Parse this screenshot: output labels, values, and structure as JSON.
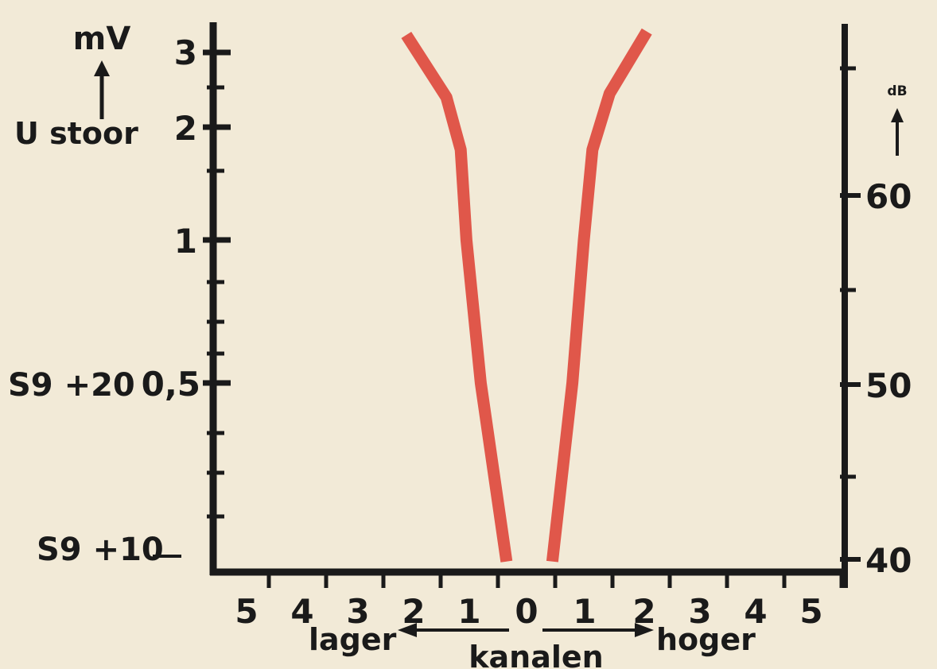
{
  "chart_data": {
    "type": "line",
    "title": "",
    "xlabel": "kanalen",
    "x_direction_labels": {
      "left": "lager",
      "right": "hoger"
    },
    "x_tick_labels": [
      "5",
      "4",
      "3",
      "2",
      "1",
      "0",
      "1",
      "2",
      "3",
      "4",
      "5"
    ],
    "xlim": [
      -5.5,
      5.5
    ],
    "y_left": {
      "unit": "mV",
      "label": "U stoor",
      "ticks": [
        {
          "value": 3,
          "label": "3"
        },
        {
          "value": 2,
          "label": "2"
        },
        {
          "value": 1,
          "label": "1"
        },
        {
          "value": 0.5,
          "label": "0,5"
        }
      ],
      "markers": [
        {
          "value": 0.5,
          "label": "S9 +20"
        },
        {
          "value": 0.15,
          "label": "S9 +10"
        }
      ]
    },
    "y_right": {
      "unit": "dB",
      "ticks": [
        {
          "value": 60,
          "label": "60"
        },
        {
          "value": 50,
          "label": "50"
        },
        {
          "value": 40,
          "label": "40"
        }
      ]
    },
    "grid": false,
    "series": [
      {
        "color": "#e0574a",
        "points": [
          {
            "x": -2.1,
            "y": 3.25
          },
          {
            "x": -1.4,
            "y": 2.4
          },
          {
            "x": -1.15,
            "y": 1.8
          },
          {
            "x": -1.05,
            "y": 1.0
          },
          {
            "x": -0.8,
            "y": 0.5
          },
          {
            "x": -0.35,
            "y": 0.1
          }
        ]
      },
      {
        "color": "#e0574a",
        "points": [
          {
            "x": 0.45,
            "y": 0.1
          },
          {
            "x": 0.8,
            "y": 0.5
          },
          {
            "x": 1.0,
            "y": 1.0
          },
          {
            "x": 1.15,
            "y": 1.8
          },
          {
            "x": 1.45,
            "y": 2.45
          },
          {
            "x": 2.1,
            "y": 3.3
          }
        ]
      }
    ]
  }
}
